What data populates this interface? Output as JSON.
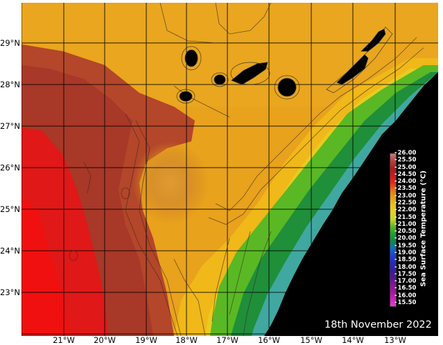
{
  "map": {
    "variable": "Sea Surface Temperature",
    "colorbar_label": "Sea Surface Temperature (°C)",
    "date": "18th November 2022",
    "latitude_labels": [
      "29°N",
      "28°N",
      "27°N",
      "26°N",
      "25°N",
      "24°N",
      "23°N"
    ],
    "longitude_labels": [
      "21°W",
      "20°W",
      "19°W",
      "18°W",
      "17°W",
      "16°W",
      "15°W",
      "14°W",
      "13°W"
    ],
    "colorbar_ticks": [
      "26.00",
      "25.50",
      "25.00",
      "24.50",
      "24.00",
      "23.50",
      "23.00",
      "22.50",
      "22.00",
      "21.50",
      "21.00",
      "20.50",
      "20.00",
      "19.50",
      "19.00",
      "18.50",
      "18.00",
      "17.50",
      "17.00",
      "16.50",
      "16.00",
      "15.50"
    ],
    "colorbar_colors": [
      "#c97a7a",
      "#b84040",
      "#a02020",
      "#d01818",
      "#e82818",
      "#e87018",
      "#e8a018",
      "#ecc018",
      "#e8d020",
      "#c8d828",
      "#60b820",
      "#20a030",
      "#108848",
      "#1070c0",
      "#2040e0",
      "#2828c0",
      "#3020a0",
      "#501890",
      "#801898",
      "#a01898",
      "#d020c0",
      "#e040d8"
    ],
    "land_color": "#000000",
    "islands": [
      "La Palma",
      "Tenerife",
      "La Gomera",
      "El Hierro",
      "Gran Canaria",
      "Fuerteventura",
      "Lanzarote"
    ]
  }
}
